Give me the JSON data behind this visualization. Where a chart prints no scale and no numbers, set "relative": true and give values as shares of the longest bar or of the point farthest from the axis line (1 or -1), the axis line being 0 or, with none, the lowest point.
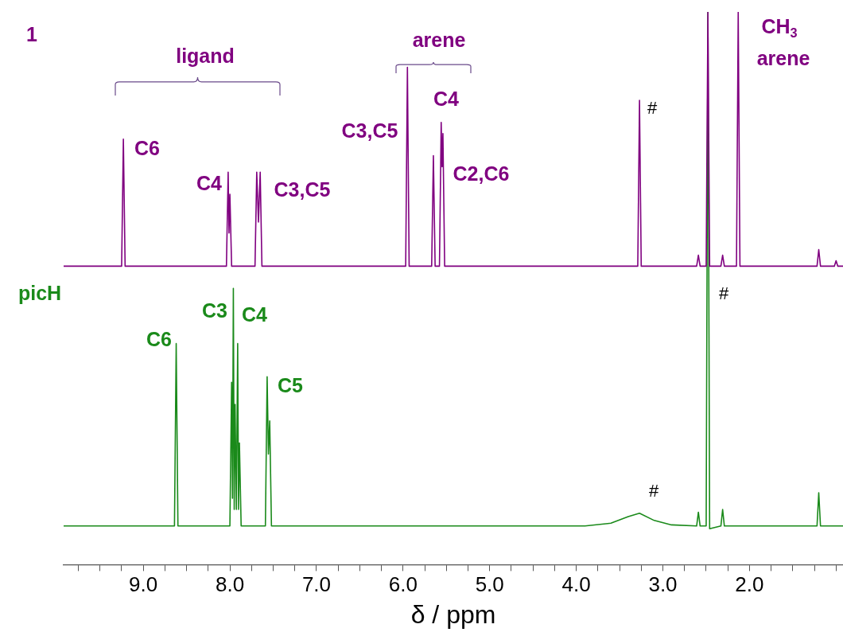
{
  "chart_data": {
    "type": "line",
    "relative": true,
    "xlabel": "δ / ppm",
    "xlim": [
      9.92,
      0.92
    ],
    "xticks": [
      {
        "value": 9.75,
        "label": null
      },
      {
        "value": 9.5,
        "label": null
      },
      {
        "value": 9.25,
        "label": null
      },
      {
        "value": 9,
        "label": "9.0"
      },
      {
        "value": 8.75,
        "label": null
      },
      {
        "value": 8.5,
        "label": null
      },
      {
        "value": 8.25,
        "label": null
      },
      {
        "value": 8,
        "label": "8.0"
      },
      {
        "value": 7.75,
        "label": null
      },
      {
        "value": 7.5,
        "label": null
      },
      {
        "value": 7.25,
        "label": null
      },
      {
        "value": 7,
        "label": "7.0"
      },
      {
        "value": 6.75,
        "label": null
      },
      {
        "value": 6.5,
        "label": null
      },
      {
        "value": 6.25,
        "label": null
      },
      {
        "value": 6,
        "label": "6.0"
      },
      {
        "value": 5.75,
        "label": null
      },
      {
        "value": 5.5,
        "label": null
      },
      {
        "value": 5.25,
        "label": null
      },
      {
        "value": 5,
        "label": "5.0"
      },
      {
        "value": 4.75,
        "label": null
      },
      {
        "value": 4.5,
        "label": null
      },
      {
        "value": 4.25,
        "label": null
      },
      {
        "value": 4,
        "label": "4.0"
      },
      {
        "value": 3.75,
        "label": null
      },
      {
        "value": 3.5,
        "label": null
      },
      {
        "value": 3.25,
        "label": null
      },
      {
        "value": 3,
        "label": "3.0"
      },
      {
        "value": 2.75,
        "label": null
      },
      {
        "value": 2.5,
        "label": null
      },
      {
        "value": 2.25,
        "label": null
      },
      {
        "value": 2,
        "label": "2.0"
      },
      {
        "value": 1.75,
        "label": null
      },
      {
        "value": 1.5,
        "label": null
      },
      {
        "value": 1.25,
        "label": null
      },
      {
        "value": 1,
        "label": null
      }
    ],
    "grid": false,
    "legend": false,
    "marker": "none",
    "line_style": "solid",
    "series": [
      {
        "name": "1",
        "color": "#800080",
        "x": [
          9.92,
          9.25,
          9.23,
          9.21,
          8.04,
          8.02,
          8.01,
          8.0,
          7.98,
          7.71,
          7.69,
          7.67,
          7.65,
          7.63,
          5.97,
          5.95,
          5.93,
          5.67,
          5.65,
          5.63,
          5.58,
          5.56,
          5.55,
          5.54,
          5.52,
          3.29,
          3.27,
          3.25,
          2.61,
          2.59,
          2.57,
          2.5,
          2.48,
          2.46,
          2.33,
          2.31,
          2.29,
          2.15,
          2.13,
          2.11,
          1.22,
          1.2,
          1.18,
          1.02,
          1.0,
          0.98,
          0.92
        ],
        "values": [
          0.54,
          0.54,
          0.77,
          0.54,
          0.54,
          0.71,
          0.6,
          0.67,
          0.54,
          0.54,
          0.71,
          0.62,
          0.71,
          0.54,
          0.54,
          0.9,
          0.54,
          0.54,
          0.74,
          0.54,
          0.54,
          0.8,
          0.72,
          0.78,
          0.54,
          0.54,
          0.84,
          0.54,
          0.54,
          0.56,
          0.54,
          0.54,
          1,
          0.54,
          0.54,
          0.56,
          0.54,
          0.54,
          1,
          0.54,
          0.54,
          0.57,
          0.54,
          0.54,
          0.55,
          0.54,
          0.54
        ]
      },
      {
        "name": "picH",
        "color": "#1a8a1a",
        "x": [
          9.92,
          8.64,
          8.62,
          8.6,
          8.0,
          7.98,
          7.97,
          7.96,
          7.95,
          7.94,
          7.925,
          7.91,
          7.9,
          7.89,
          7.87,
          7.59,
          7.57,
          7.555,
          7.54,
          7.52,
          3.9,
          3.6,
          3.4,
          3.27,
          3.1,
          2.9,
          2.61,
          2.59,
          2.57,
          2.5,
          2.48,
          2.46,
          2.33,
          2.31,
          2.29,
          1.22,
          1.2,
          1.18,
          0.92
        ],
        "values": [
          0.07,
          0.07,
          0.4,
          0.07,
          0.07,
          0.33,
          0.12,
          0.5,
          0.1,
          0.29,
          0.1,
          0.4,
          0.1,
          0.22,
          0.07,
          0.07,
          0.34,
          0.2,
          0.26,
          0.07,
          0.07,
          0.075,
          0.087,
          0.093,
          0.08,
          0.072,
          0.07,
          0.095,
          0.07,
          0.07,
          1,
          0.065,
          0.07,
          0.1,
          0.07,
          0.07,
          0.13,
          0.07,
          0.07
        ]
      }
    ],
    "annotations": [
      "ligand",
      "arene",
      "C6",
      "C4",
      "C3,C5",
      "C3,C5",
      "C4",
      "C2,C6",
      "#",
      "CH$_{3}$",
      "arene",
      "C6",
      "C3",
      "C4",
      "C5",
      "#",
      "#"
    ]
  }
}
